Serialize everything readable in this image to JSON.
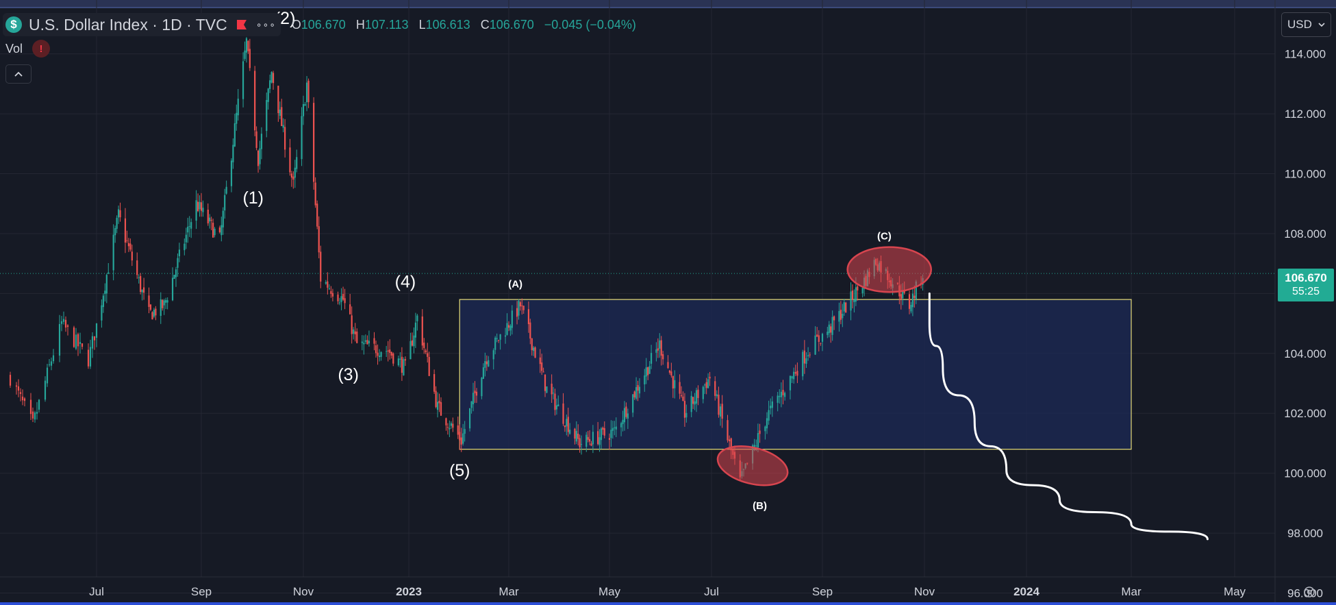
{
  "header": {
    "symbol_title": "U.S. Dollar Index · 1D · TVC",
    "symbol_icon": "dollar-sign-icon",
    "flag_icon": "red-flag-icon",
    "more_label": "∘∘∘",
    "ohlc": {
      "o_label": "O",
      "o_value": "106.670",
      "h_label": "H",
      "h_value": "107.113",
      "l_label": "L",
      "l_value": "106.613",
      "c_label": "C",
      "c_value": "106.670",
      "change": "−0.045 (−0.04%)"
    },
    "vol_label": "Vol",
    "vol_warning": "!",
    "collapse_icon": "chevron-up-icon",
    "currency": "USD"
  },
  "last_price": {
    "price": "106.670",
    "countdown": "55:25"
  },
  "colors": {
    "background": "#161a25",
    "up": "#26a69a",
    "down": "#ef5350",
    "box_fill": "#1c2a55",
    "box_border": "#e8dd78",
    "ellipse": "#d8454f",
    "projection": "#ffffff",
    "last_price_tag": "#22ab94"
  },
  "chart_data": {
    "type": "candlestick",
    "title": "U.S. Dollar Index · 1D · TVC",
    "x_labels": [
      "Jul",
      "Sep",
      "Nov",
      "2023",
      "Mar",
      "May",
      "Jul",
      "Sep",
      "Nov",
      "2024",
      "Mar",
      "May"
    ],
    "y_ticks": [
      "114.000",
      "112.000",
      "110.000",
      "108.000",
      "104.000",
      "102.000",
      "100.000",
      "98.000",
      "96.000"
    ],
    "ylim": [
      95.6,
      115.8
    ],
    "grid": true,
    "last_value": 106.67,
    "price_path": [
      {
        "d": "2022-05-20",
        "v": 103.2
      },
      {
        "d": "2022-05-31",
        "v": 101.6
      },
      {
        "d": "2022-06-14",
        "v": 105.0
      },
      {
        "d": "2022-06-27",
        "v": 103.8
      },
      {
        "d": "2022-07-14",
        "v": 108.6
      },
      {
        "d": "2022-08-01",
        "v": 105.3
      },
      {
        "d": "2022-08-10",
        "v": 105.6
      },
      {
        "d": "2022-08-29",
        "v": 109.0
      },
      {
        "d": "2022-09-12",
        "v": 107.8
      },
      {
        "d": "2022-09-28",
        "v": 114.4
      },
      {
        "d": "2022-10-05",
        "v": 110.5
      },
      {
        "d": "2022-10-13",
        "v": 113.4
      },
      {
        "d": "2022-10-26",
        "v": 109.6
      },
      {
        "d": "2022-11-03",
        "v": 113.0
      },
      {
        "d": "2022-11-11",
        "v": 106.5
      },
      {
        "d": "2022-11-24",
        "v": 105.8
      },
      {
        "d": "2022-12-02",
        "v": 104.3
      },
      {
        "d": "2022-12-20",
        "v": 104.1
      },
      {
        "d": "2022-12-30",
        "v": 103.5
      },
      {
        "d": "2023-01-06",
        "v": 105.2
      },
      {
        "d": "2023-01-18",
        "v": 102.2
      },
      {
        "d": "2023-02-01",
        "v": 101.1
      },
      {
        "d": "2023-02-15",
        "v": 103.8
      },
      {
        "d": "2023-03-08",
        "v": 105.6
      },
      {
        "d": "2023-03-24",
        "v": 102.8
      },
      {
        "d": "2023-04-13",
        "v": 101.0
      },
      {
        "d": "2023-05-04",
        "v": 101.4
      },
      {
        "d": "2023-05-31",
        "v": 104.3
      },
      {
        "d": "2023-06-15",
        "v": 102.0
      },
      {
        "d": "2023-06-30",
        "v": 103.2
      },
      {
        "d": "2023-07-17",
        "v": 99.7
      },
      {
        "d": "2023-08-01",
        "v": 101.9
      },
      {
        "d": "2023-08-25",
        "v": 104.2
      },
      {
        "d": "2023-09-05",
        "v": 104.8
      },
      {
        "d": "2023-09-27",
        "v": 106.5
      },
      {
        "d": "2023-10-03",
        "v": 107.1
      },
      {
        "d": "2023-10-13",
        "v": 106.4
      },
      {
        "d": "2023-10-23",
        "v": 105.6
      },
      {
        "d": "2023-10-31",
        "v": 106.67
      }
    ],
    "annotations": {
      "wave_labels": [
        {
          "text": "(1)",
          "d": "2022-10-02",
          "v": 109.0
        },
        {
          "text": "(2)",
          "d": "2022-10-21",
          "v": 115.0
        },
        {
          "text": "(3)",
          "d": "2022-11-27",
          "v": 103.1
        },
        {
          "text": "(4)",
          "d": "2022-12-30",
          "v": 106.2
        },
        {
          "text": "(5)",
          "d": "2023-01-31",
          "v": 99.9
        }
      ],
      "abc_labels": [
        {
          "text": "(A)",
          "d": "2023-03-05",
          "v": 106.2
        },
        {
          "text": "(B)",
          "d": "2023-07-28",
          "v": 98.8
        },
        {
          "text": "(C)",
          "d": "2023-10-08",
          "v": 107.8
        }
      ],
      "range_box": {
        "d1": "2023-01-31",
        "d2": "2024-03-01",
        "v_top": 105.8,
        "v_bottom": 100.8
      },
      "ellipses": [
        {
          "label": "(B)",
          "d_center": "2023-07-24",
          "v_center": 100.25,
          "d_radius": 20,
          "v_radius": 0.6
        },
        {
          "label": "(C)",
          "d_center": "2023-10-11",
          "v_center": 106.8,
          "d_radius": 25,
          "v_radius": 0.75
        }
      ],
      "projection_path": [
        {
          "d": "2023-11-04",
          "v": 106.0
        },
        {
          "d": "2023-11-04",
          "v": 105.0
        },
        {
          "d": "2023-11-12",
          "v": 103.5
        },
        {
          "d": "2023-12-01",
          "v": 101.7
        },
        {
          "d": "2023-12-20",
          "v": 100.1
        },
        {
          "d": "2024-01-20",
          "v": 99.1
        },
        {
          "d": "2024-03-01",
          "v": 98.3
        },
        {
          "d": "2024-04-15",
          "v": 97.8
        }
      ]
    }
  }
}
